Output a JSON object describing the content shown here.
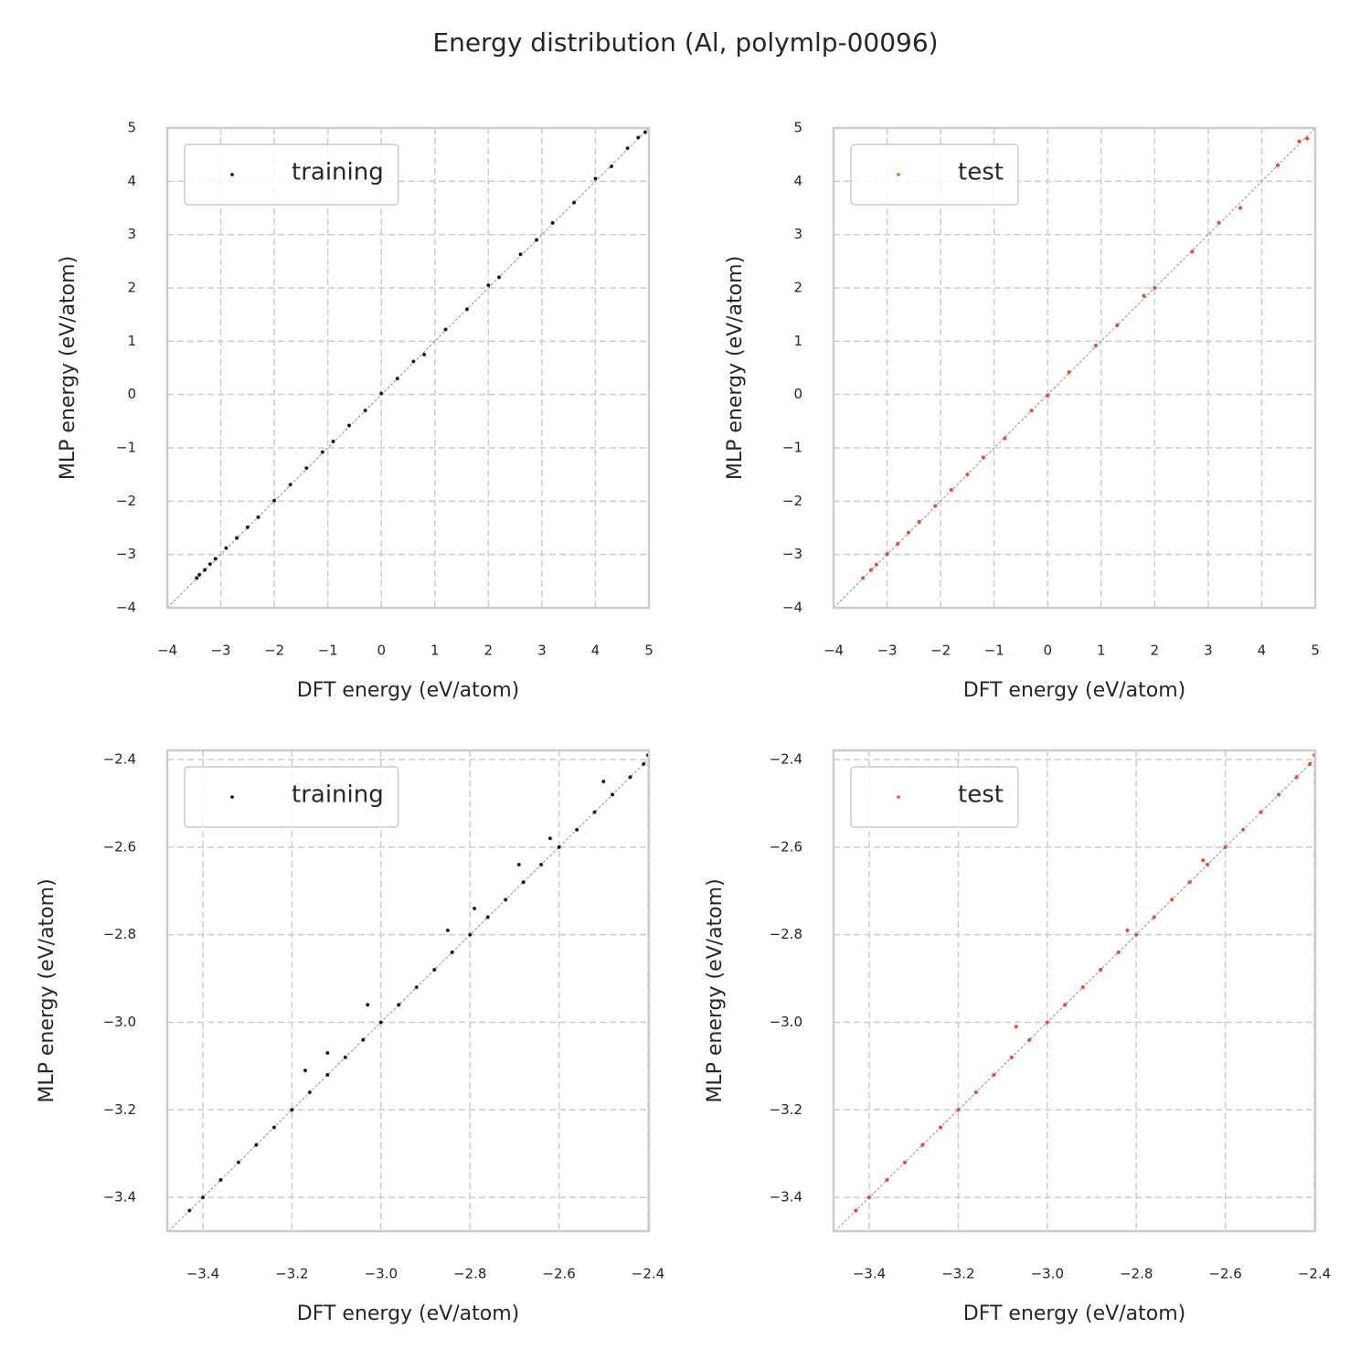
{
  "title": "Energy distribution (Al, polymlp-00096)",
  "chart_data": [
    {
      "type": "scatter",
      "x_label": "DFT energy (eV/atom)",
      "y_label": "MLP energy (eV/atom)",
      "xlim": [
        -4,
        5
      ],
      "ylim": [
        -4,
        5
      ],
      "xticks": [
        {
          "value": -4,
          "label": "−4"
        },
        {
          "value": -3,
          "label": "−3"
        },
        {
          "value": -2,
          "label": "−2"
        },
        {
          "value": -1,
          "label": "−1"
        },
        0,
        1,
        2,
        3,
        4,
        5
      ],
      "yticks": [
        {
          "value": -4,
          "label": "−4"
        },
        {
          "value": -3,
          "label": "−3"
        },
        {
          "value": -2,
          "label": "−2"
        },
        {
          "value": -1,
          "label": "−1"
        },
        0,
        1,
        2,
        3,
        4,
        5
      ],
      "grid": true,
      "legend": "upper left",
      "series": [
        {
          "name": "training",
          "color": "#000000",
          "x": [
            -3.45,
            -3.4,
            -3.3,
            -3.2,
            -3.1,
            -2.9,
            -2.7,
            -2.5,
            -2.3,
            -2.0,
            -1.7,
            -1.4,
            -1.1,
            -0.9,
            -0.6,
            -0.3,
            0,
            0.3,
            0.6,
            0.8,
            1.2,
            1.6,
            2.0,
            2.2,
            2.6,
            2.9,
            3.2,
            3.6,
            4.0,
            4.3,
            4.6,
            4.8,
            4.93
          ],
          "values": [
            -3.44,
            -3.38,
            -3.29,
            -3.18,
            -3.08,
            -2.88,
            -2.69,
            -2.49,
            -2.3,
            -1.99,
            -1.69,
            -1.38,
            -1.08,
            -0.88,
            -0.58,
            -0.3,
            0.02,
            0.3,
            0.62,
            0.75,
            1.22,
            1.6,
            2.05,
            2.2,
            2.63,
            2.9,
            3.22,
            3.6,
            4.05,
            4.28,
            4.62,
            4.82,
            4.92
          ]
        }
      ]
    },
    {
      "type": "scatter",
      "x_label": "DFT energy (eV/atom)",
      "y_label": "MLP energy (eV/atom)",
      "xlim": [
        -4,
        5
      ],
      "ylim": [
        -4,
        5
      ],
      "xticks": [
        {
          "value": -4,
          "label": "−4"
        },
        {
          "value": -3,
          "label": "−3"
        },
        {
          "value": -2,
          "label": "−2"
        },
        {
          "value": -1,
          "label": "−1"
        },
        0,
        1,
        2,
        3,
        4,
        5
      ],
      "yticks": [
        {
          "value": -4,
          "label": "−4"
        },
        {
          "value": -3,
          "label": "−3"
        },
        {
          "value": -2,
          "label": "−2"
        },
        {
          "value": -1,
          "label": "−1"
        },
        0,
        1,
        2,
        3,
        4,
        5
      ],
      "grid": true,
      "legend": "upper left",
      "series": [
        {
          "name": "test",
          "color": "#e8502a",
          "x": [
            -3.45,
            -3.3,
            -3.2,
            -3.0,
            -2.8,
            -2.6,
            -2.4,
            -2.1,
            -1.8,
            -1.5,
            -1.2,
            -0.8,
            -0.3,
            0,
            0.4,
            0.9,
            1.3,
            1.8,
            2.0,
            2.7,
            3.2,
            3.6,
            4.3,
            4.7,
            4.85
          ],
          "values": [
            -3.44,
            -3.29,
            -3.19,
            -2.99,
            -2.8,
            -2.59,
            -2.39,
            -2.09,
            -1.79,
            -1.5,
            -1.18,
            -0.82,
            -0.3,
            -0.02,
            0.42,
            0.92,
            1.3,
            1.85,
            2.0,
            2.68,
            3.22,
            3.5,
            4.3,
            4.75,
            4.8
          ]
        }
      ]
    },
    {
      "type": "scatter",
      "x_label": "DFT energy (eV/atom)",
      "y_label": "MLP energy (eV/atom)",
      "xlim": [
        -3.48,
        -2.398
      ],
      "ylim": [
        -3.477,
        -2.379
      ],
      "xticks": [
        {
          "value": -3.4,
          "label": "−3.4"
        },
        {
          "value": -3.2,
          "label": "−3.2"
        },
        {
          "value": -3.0,
          "label": "−3.0"
        },
        {
          "value": -2.8,
          "label": "−2.8"
        },
        {
          "value": -2.6,
          "label": "−2.6"
        },
        {
          "value": -2.4,
          "label": "−2.4"
        }
      ],
      "yticks": [
        {
          "value": -3.4,
          "label": "−3.4"
        },
        {
          "value": -3.2,
          "label": "−3.2"
        },
        {
          "value": -3.0,
          "label": "−3.0"
        },
        {
          "value": -2.8,
          "label": "−2.8"
        },
        {
          "value": -2.6,
          "label": "−2.6"
        },
        {
          "value": -2.4,
          "label": "−2.4"
        }
      ],
      "grid": true,
      "legend": "upper left",
      "series": [
        {
          "name": "training",
          "color": "#000000",
          "x": [
            -3.43,
            -3.4,
            -3.36,
            -3.32,
            -3.28,
            -3.24,
            -3.2,
            -3.16,
            -3.12,
            -3.08,
            -3.04,
            -3.0,
            -2.96,
            -2.92,
            -2.88,
            -2.84,
            -2.8,
            -2.76,
            -2.72,
            -2.68,
            -2.64,
            -2.6,
            -2.56,
            -2.52,
            -2.48,
            -2.44,
            -2.41,
            -2.4,
            -3.17,
            -3.12,
            -3.03,
            -2.85,
            -2.79,
            -2.69,
            -2.62,
            -2.5
          ],
          "values": [
            -3.43,
            -3.4,
            -3.36,
            -3.32,
            -3.28,
            -3.24,
            -3.2,
            -3.16,
            -3.12,
            -3.08,
            -3.04,
            -3.0,
            -2.96,
            -2.92,
            -2.88,
            -2.84,
            -2.8,
            -2.76,
            -2.72,
            -2.68,
            -2.64,
            -2.6,
            -2.56,
            -2.52,
            -2.48,
            -2.44,
            -2.41,
            -2.39,
            -3.11,
            -3.07,
            -2.96,
            -2.79,
            -2.74,
            -2.64,
            -2.58,
            -2.45
          ]
        }
      ]
    },
    {
      "type": "scatter",
      "x_label": "DFT energy (eV/atom)",
      "y_label": "MLP energy (eV/atom)",
      "xlim": [
        -3.48,
        -2.398
      ],
      "ylim": [
        -3.477,
        -2.379
      ],
      "xticks": [
        {
          "value": -3.4,
          "label": "−3.4"
        },
        {
          "value": -3.2,
          "label": "−3.2"
        },
        {
          "value": -3.0,
          "label": "−3.0"
        },
        {
          "value": -2.8,
          "label": "−2.8"
        },
        {
          "value": -2.6,
          "label": "−2.6"
        },
        {
          "value": -2.4,
          "label": "−2.4"
        }
      ],
      "yticks": [
        {
          "value": -3.4,
          "label": "−3.4"
        },
        {
          "value": -3.2,
          "label": "−3.2"
        },
        {
          "value": -3.0,
          "label": "−3.0"
        },
        {
          "value": -2.8,
          "label": "−2.8"
        },
        {
          "value": -2.6,
          "label": "−2.6"
        },
        {
          "value": -2.4,
          "label": "−2.4"
        }
      ],
      "grid": true,
      "legend": "upper left",
      "series": [
        {
          "name": "test",
          "color": "#e8502a",
          "x": [
            -3.43,
            -3.4,
            -3.36,
            -3.32,
            -3.28,
            -3.24,
            -3.2,
            -3.16,
            -3.12,
            -3.08,
            -3.04,
            -3.0,
            -2.96,
            -2.92,
            -2.88,
            -2.84,
            -2.8,
            -2.76,
            -2.72,
            -2.68,
            -2.64,
            -2.6,
            -2.56,
            -2.52,
            -2.48,
            -2.44,
            -2.41,
            -2.4,
            -3.07,
            -2.82,
            -2.65
          ],
          "values": [
            -3.43,
            -3.4,
            -3.36,
            -3.32,
            -3.28,
            -3.24,
            -3.2,
            -3.16,
            -3.12,
            -3.08,
            -3.04,
            -3.0,
            -2.96,
            -2.92,
            -2.88,
            -2.84,
            -2.8,
            -2.76,
            -2.72,
            -2.68,
            -2.64,
            -2.6,
            -2.56,
            -2.52,
            -2.48,
            -2.44,
            -2.41,
            -2.39,
            -3.01,
            -2.79,
            -2.63
          ]
        }
      ]
    }
  ]
}
